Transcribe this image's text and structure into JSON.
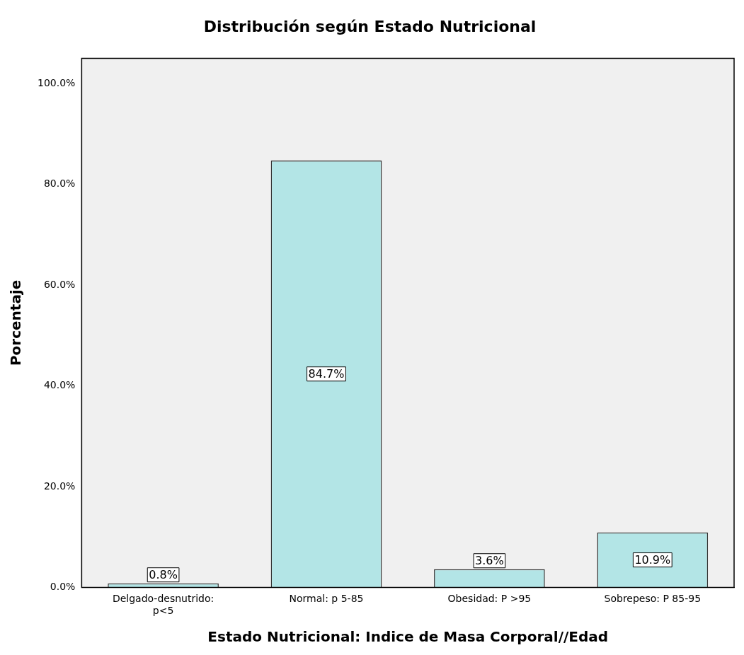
{
  "chart_data": {
    "type": "bar",
    "title": "Distribución según Estado Nutricional",
    "xlabel": "Estado Nutricional: Indice de Masa Corporal//Edad",
    "ylabel": "Porcentaje",
    "categories": [
      "Delgado-desnutrido: p<5",
      "Normal: p 5-85",
      "Obesidad: P >95",
      "Sobrepeso: P 85-95"
    ],
    "values": [
      0.8,
      84.7,
      3.6,
      10.9
    ],
    "value_labels": [
      "0.8%",
      "84.7%",
      "3.6%",
      "10.9%"
    ],
    "color": "#b3e5e6",
    "ylim": [
      0,
      105
    ],
    "yticks": [
      {
        "value": 0,
        "label": "0.0%"
      },
      {
        "value": 20,
        "label": "20.0%"
      },
      {
        "value": 40,
        "label": "40.0%"
      },
      {
        "value": 60,
        "label": "60.0%"
      },
      {
        "value": 80,
        "label": "80.0%"
      },
      {
        "value": 100,
        "label": "100.0%"
      }
    ],
    "grid": false,
    "legend": false
  }
}
